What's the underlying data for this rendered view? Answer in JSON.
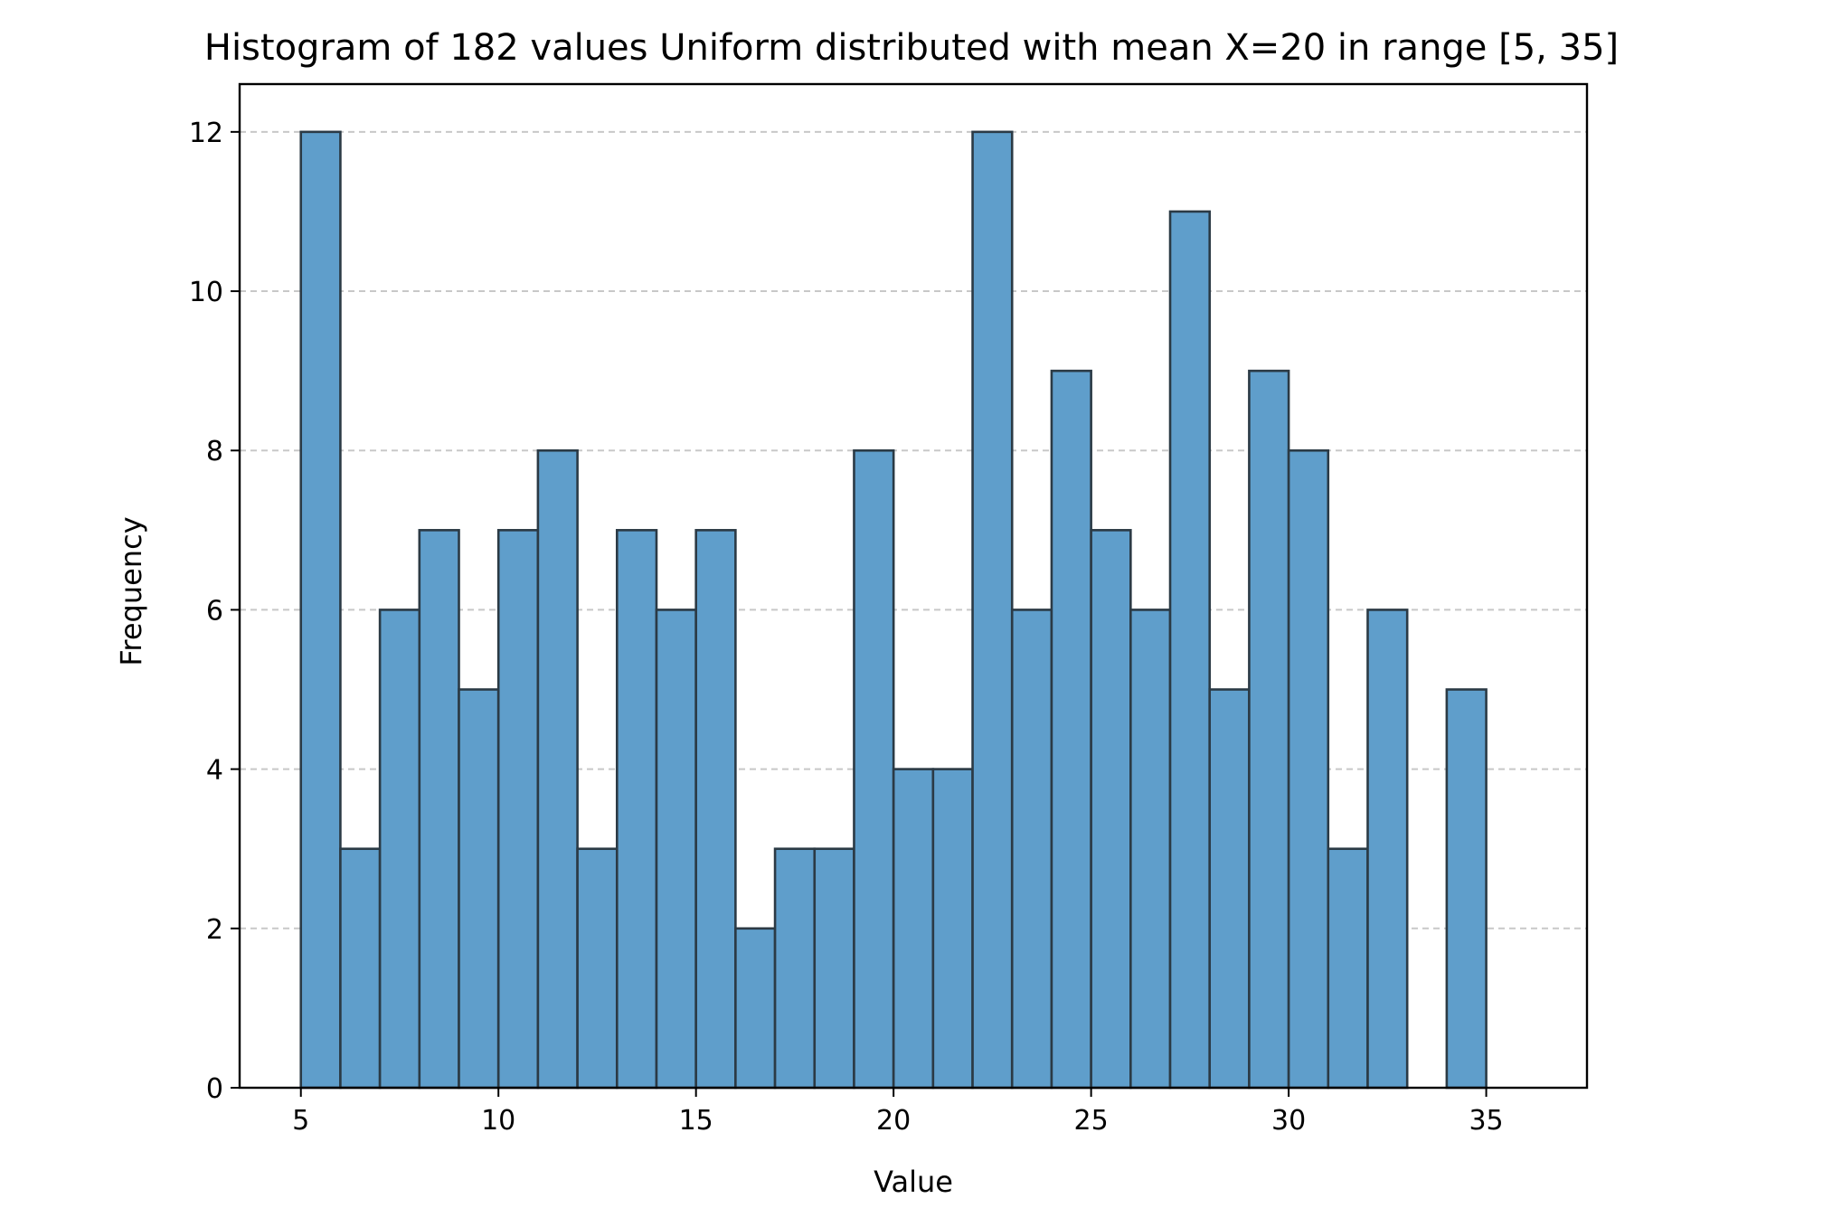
{
  "chart_data": {
    "type": "bar",
    "title": "Histogram of 182 values Uniform distributed with mean X=20 in range [5, 35]",
    "xlabel": "Value",
    "ylabel": "Frequency",
    "xlim": [
      3.45,
      37.55
    ],
    "ylim": [
      0,
      12.6
    ],
    "xticks": [
      5,
      10,
      15,
      20,
      25,
      30,
      35
    ],
    "yticks": [
      0,
      2,
      4,
      6,
      8,
      10,
      12
    ],
    "grid": "y-dashed",
    "bin_edges": [
      5,
      6,
      7,
      8,
      9,
      10,
      11,
      12,
      13,
      14,
      15,
      16,
      17,
      18,
      19,
      20,
      21,
      22,
      23,
      24,
      25,
      26,
      27,
      28,
      29,
      30,
      31,
      32,
      33,
      34,
      35,
      36
    ],
    "values": [
      12,
      3,
      6,
      7,
      5,
      7,
      8,
      3,
      7,
      6,
      7,
      2,
      3,
      3,
      8,
      4,
      4,
      12,
      6,
      9,
      7,
      6,
      11,
      5,
      9,
      8,
      3,
      6,
      0,
      5,
      0
    ],
    "colors": {
      "bar_fill": "#5f9ecb",
      "bar_edge": "#2b3a45",
      "grid": "#c8c8c8",
      "axis": "#000000"
    }
  }
}
